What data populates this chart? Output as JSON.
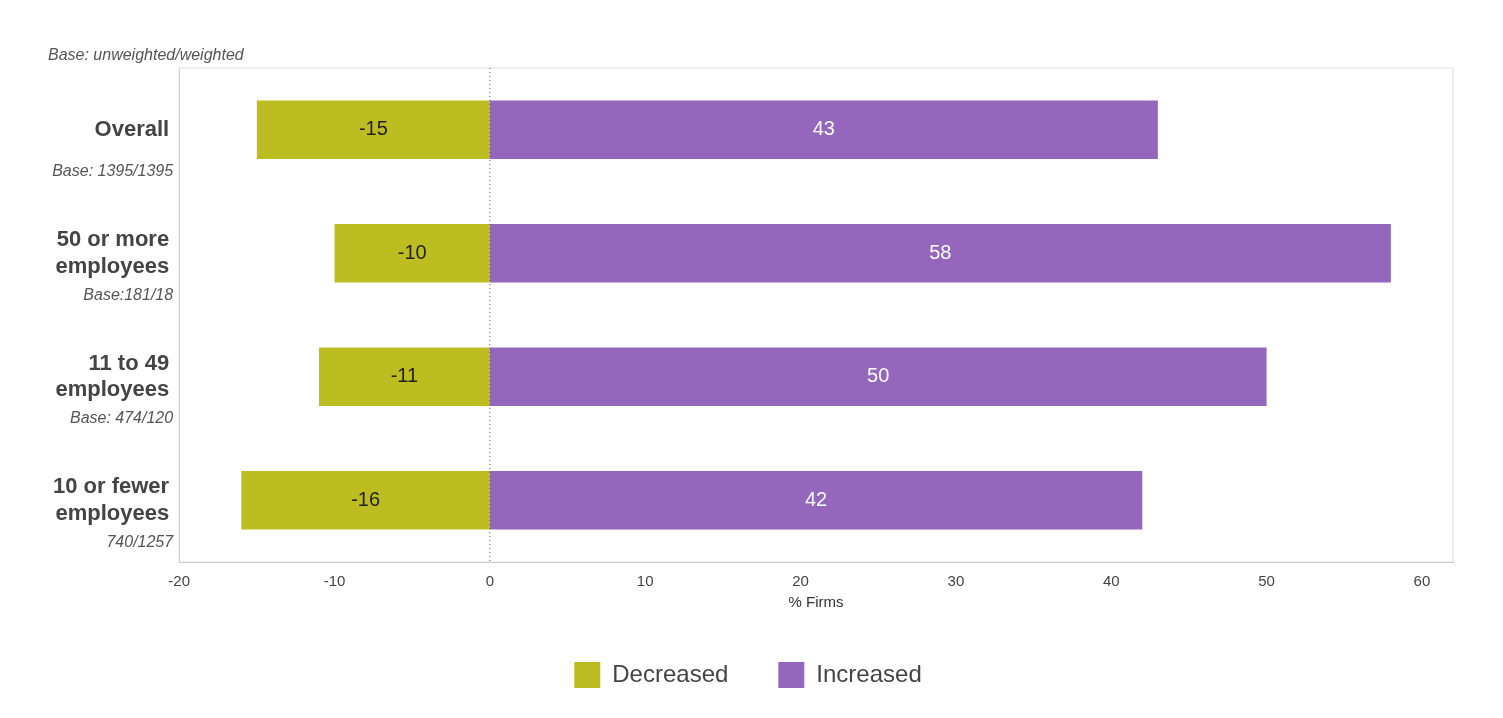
{
  "chart_data": {
    "type": "bar",
    "orientation": "horizontal",
    "stacked": true,
    "categories": [
      "Overall",
      "50 or more employees",
      "11 to 49 employees",
      "10 or fewer employees"
    ],
    "series": [
      {
        "name": "Decreased",
        "color": "#bdbd22",
        "values": [
          -15,
          -10,
          -11,
          -16
        ]
      },
      {
        "name": "Increased",
        "color": "#9467bd",
        "values": [
          43,
          58,
          50,
          42
        ]
      }
    ],
    "xlabel": "% Firms",
    "xlim": [
      -20,
      62
    ],
    "xticks": [
      -20,
      -10,
      0,
      10,
      20,
      30,
      40,
      50,
      60
    ],
    "grid": false,
    "legend": "bottom",
    "data_labels": true,
    "ref_lines": [
      {
        "axis": "x",
        "value": 0,
        "line_style": "dotted",
        "color": "#555555"
      }
    ],
    "annotations": [
      "Base: unweighted/weighted",
      "Base: 1395/1395",
      "Base:181/18",
      "Base: 474/120",
      "740/1257"
    ]
  }
}
